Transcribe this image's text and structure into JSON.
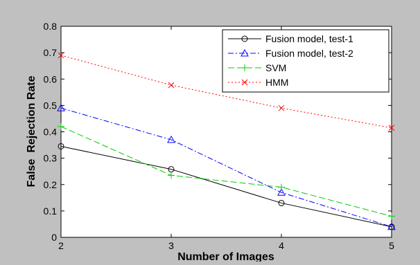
{
  "chart_data": {
    "type": "line",
    "title": "",
    "xlabel": "Number of Images",
    "ylabel": "False  Rejection Rate",
    "xlim": [
      2,
      5
    ],
    "ylim": [
      0,
      0.8
    ],
    "x": [
      2,
      3,
      4,
      5
    ],
    "x_ticks": [
      "2",
      "3",
      "4",
      "5"
    ],
    "y_ticks": [
      "0",
      "0.1",
      "0.2",
      "0.3",
      "0.4",
      "0.5",
      "0.6",
      "0.7",
      "0.8"
    ],
    "y_tick_values": [
      0,
      0.1,
      0.2,
      0.3,
      0.4,
      0.5,
      0.6,
      0.7,
      0.8
    ],
    "grid": false,
    "legend_position": "top-right",
    "series": [
      {
        "name": "Fusion model, test-1",
        "values": [
          0.345,
          0.258,
          0.13,
          0.04
        ],
        "color": "#000000",
        "marker": "circle",
        "line_style": "solid"
      },
      {
        "name": "Fusion model, test-2",
        "values": [
          0.49,
          0.37,
          0.17,
          0.04
        ],
        "color": "#0000ff",
        "marker": "triangle",
        "line_style": "dashdot"
      },
      {
        "name": "SVM",
        "values": [
          0.42,
          0.235,
          0.19,
          0.08
        ],
        "color": "#00cc00",
        "marker": "plus",
        "line_style": "dashed"
      },
      {
        "name": "HMM",
        "values": [
          0.69,
          0.577,
          0.49,
          0.415
        ],
        "color": "#ff0000",
        "marker": "x",
        "line_style": "dotted"
      }
    ]
  }
}
